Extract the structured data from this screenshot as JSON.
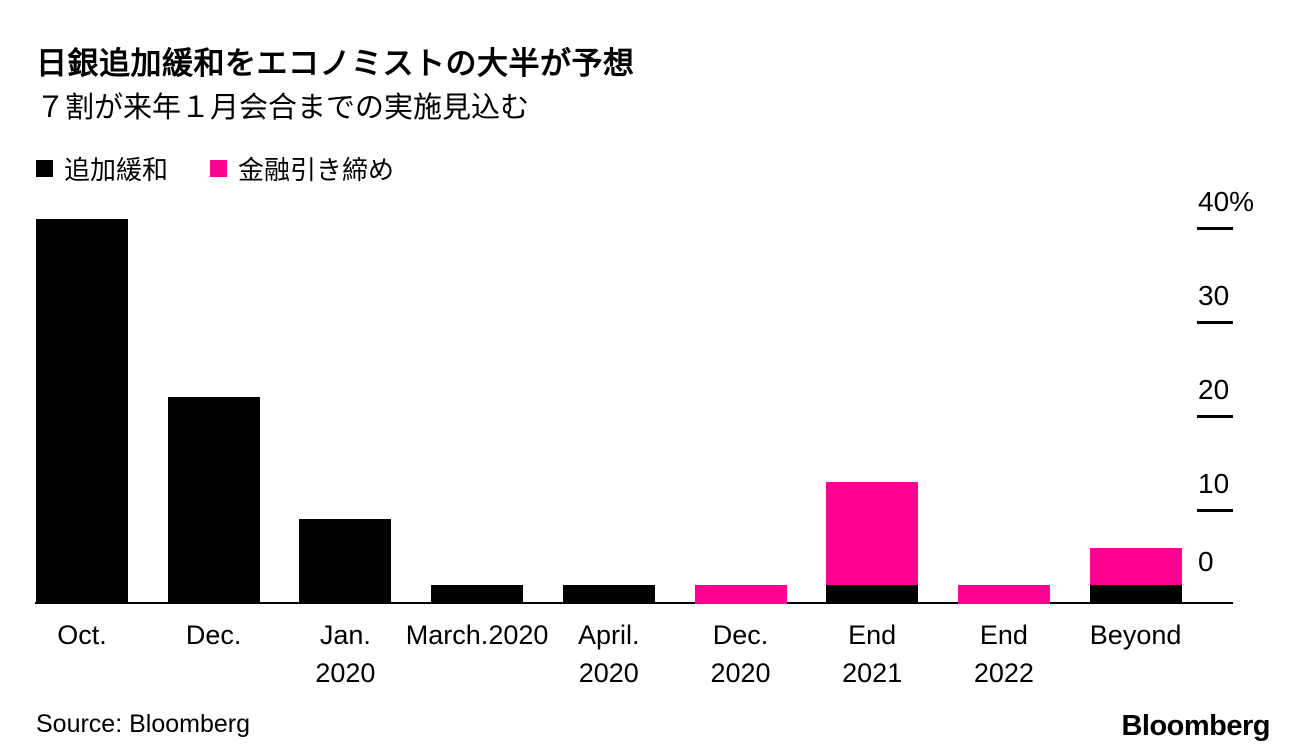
{
  "header": {
    "title": "日銀追加緩和をエコノミストの大半が予想",
    "subtitle": "７割が来年１月会合までの実施見込む"
  },
  "legend": {
    "items": [
      {
        "label": "追加緩和",
        "color": "#000000"
      },
      {
        "label": "金融引き締め",
        "color": "#ff0090"
      }
    ]
  },
  "colors": {
    "easing_black": "#000000",
    "tightening_pink": "#ff0090",
    "background": "#ffffff"
  },
  "chart_data": {
    "type": "bar",
    "stacked": true,
    "title": "日銀追加緩和をエコノミストの大半が予想",
    "subtitle": "７割が来年１月会合までの実施見込む",
    "xlabel": "",
    "ylabel": "%",
    "ylim": [
      0,
      43
    ],
    "grid": false,
    "legend_position": "top-left",
    "axis_side": "right",
    "categories": [
      "Oct.",
      "Dec.",
      "Jan. 2020",
      "March.2020",
      "April. 2020",
      "Dec. 2020",
      "End 2021",
      "End 2022",
      "Beyond"
    ],
    "category_label_lines": [
      [
        "Oct."
      ],
      [
        "Dec."
      ],
      [
        "Jan.",
        "2020"
      ],
      [
        "March.2020"
      ],
      [
        "April.",
        "2020"
      ],
      [
        "Dec.",
        "2020"
      ],
      [
        "End",
        "2021"
      ],
      [
        "End",
        "2022"
      ],
      [
        "Beyond"
      ]
    ],
    "series": [
      {
        "name": "追加緩和",
        "color": "#000000",
        "values": [
          41,
          22,
          9,
          2,
          2,
          0,
          2,
          0,
          2
        ]
      },
      {
        "name": "金融引き締め",
        "color": "#ff0090",
        "values": [
          0,
          0,
          0,
          0,
          0,
          2,
          11,
          2,
          4
        ]
      }
    ],
    "yticks": [
      {
        "label": "40%",
        "value": 40,
        "dash": true
      },
      {
        "label": "30",
        "value": 30,
        "dash": true
      },
      {
        "label": "20",
        "value": 20,
        "dash": true
      },
      {
        "label": "10",
        "value": 10,
        "dash": true
      },
      {
        "label": "0",
        "value": 0,
        "dash": false
      }
    ]
  },
  "footer": {
    "source": "Source: Bloomberg",
    "logo": "Bloomberg"
  }
}
